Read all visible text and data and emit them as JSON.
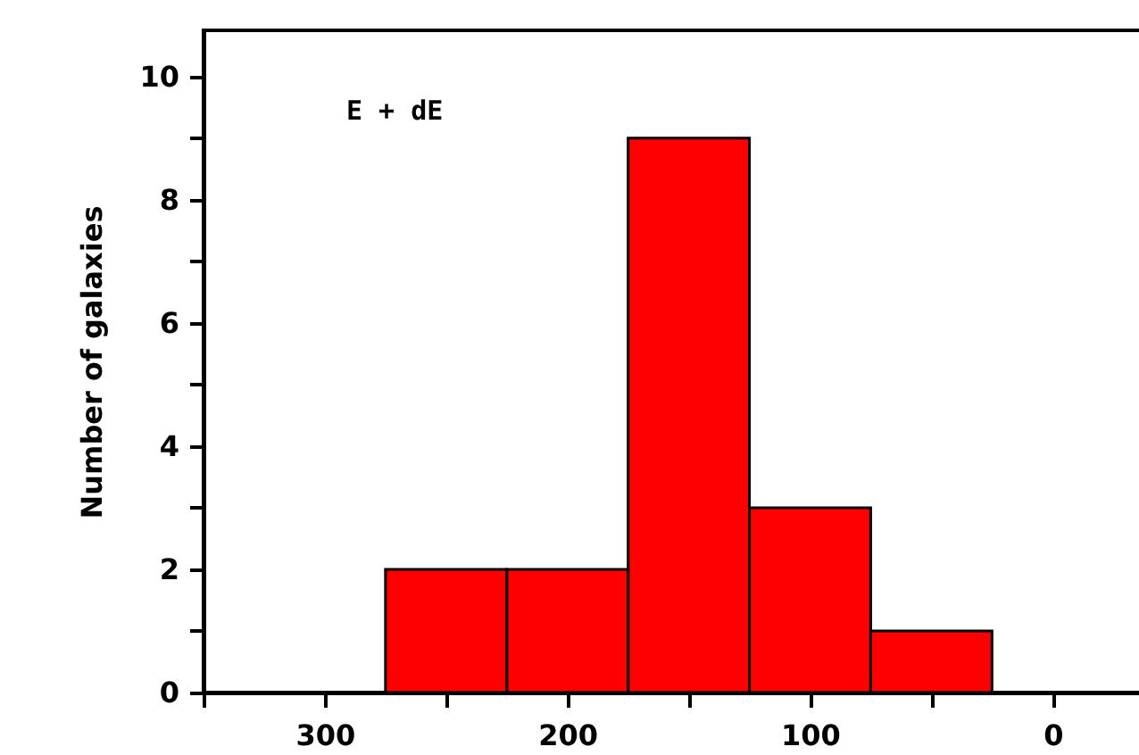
{
  "chart_data": {
    "type": "histogram",
    "ylabel": "Number of galaxies",
    "annotations": [
      "E + dE"
    ],
    "bins": [
      25,
      75,
      125,
      175,
      225,
      275
    ],
    "values": [
      1,
      3,
      9,
      2,
      2
    ],
    "color": "#ff0000",
    "xlim": [
      350,
      -40
    ],
    "xticks": [
      {
        "value": 350,
        "label": null
      },
      300,
      {
        "value": 250,
        "label": null
      },
      200,
      {
        "value": 150,
        "label": null
      },
      100,
      {
        "value": 50,
        "label": null
      },
      0
    ],
    "ylim": [
      0,
      10.75
    ],
    "yticks": [
      0,
      {
        "value": 1,
        "label": null
      },
      2,
      {
        "value": 3,
        "label": null
      },
      4,
      {
        "value": 5,
        "label": null
      },
      6,
      {
        "value": 7,
        "label": null
      },
      8,
      {
        "value": 9,
        "label": null
      },
      10
    ],
    "grid": false
  }
}
